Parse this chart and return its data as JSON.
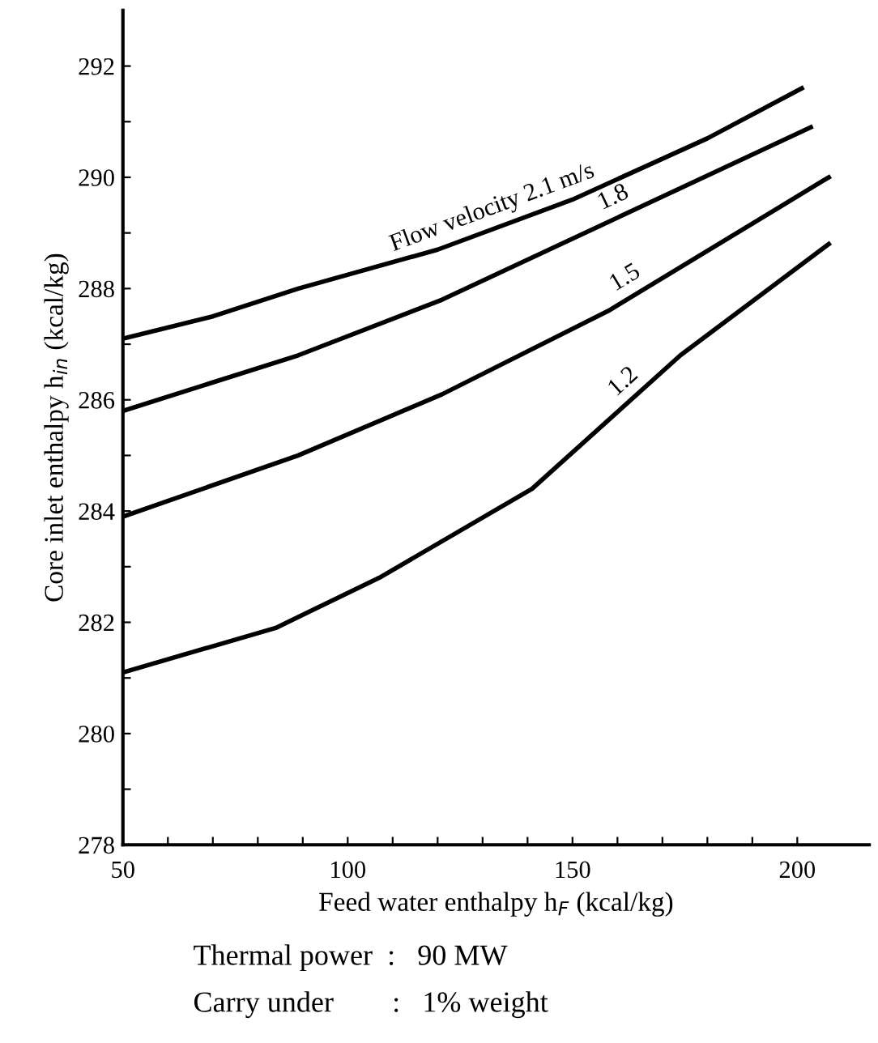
{
  "chart_data": {
    "type": "line",
    "xlabel": "Feed water enthalpy h$_{F}$ (kcal/kg)",
    "ylabel": "Core inlet enthalpy h$_{in}$ (kcal/kg)",
    "xlim": [
      50,
      216
    ],
    "ylim": [
      278,
      293
    ],
    "xticks": [
      50,
      {
        "value": 60,
        "label": null
      },
      {
        "value": 70,
        "label": null
      },
      {
        "value": 80,
        "label": null
      },
      {
        "value": 90,
        "label": null
      },
      100,
      {
        "value": 110,
        "label": null
      },
      {
        "value": 120,
        "label": null
      },
      {
        "value": 130,
        "label": null
      },
      {
        "value": 140,
        "label": null
      },
      150,
      {
        "value": 160,
        "label": null
      },
      {
        "value": 170,
        "label": null
      },
      {
        "value": 180,
        "label": null
      },
      {
        "value": 190,
        "label": null
      },
      200
    ],
    "yticks": [
      278,
      {
        "value": 279,
        "label": null
      },
      280,
      {
        "value": 281,
        "label": null
      },
      282,
      {
        "value": 283,
        "label": null
      },
      284,
      {
        "value": 285,
        "label": null
      },
      286,
      {
        "value": 287,
        "label": null
      },
      288,
      {
        "value": 289,
        "label": null
      },
      290,
      {
        "value": 291,
        "label": null
      },
      292
    ],
    "grid": false,
    "legend": false,
    "marker": "none",
    "line_style": "solid",
    "series": [
      {
        "name": "Flow velocity 2.1 m/s",
        "color": "#000000",
        "x": [
          50,
          70,
          89,
          120,
          150,
          180,
          201
        ],
        "values": [
          287.1,
          287.5,
          288.0,
          288.7,
          289.6,
          290.7,
          291.6
        ]
      },
      {
        "name": "1.8",
        "color": "#000000",
        "x": [
          50,
          89,
          121,
          158,
          203
        ],
        "values": [
          285.8,
          286.8,
          287.8,
          289.2,
          290.9
        ]
      },
      {
        "name": "1.5",
        "color": "#000000",
        "x": [
          50,
          89,
          121,
          158,
          207
        ],
        "values": [
          283.9,
          285.0,
          286.1,
          287.6,
          290.0
        ]
      },
      {
        "name": "1.2",
        "color": "#000000",
        "x": [
          50,
          84,
          107,
          141,
          174,
          207
        ],
        "values": [
          281.1,
          281.9,
          282.8,
          284.4,
          286.8,
          288.8
        ]
      }
    ],
    "annotations": [
      "Thermal power  :   90 MW",
      "Carry under        :   1% weight"
    ]
  }
}
